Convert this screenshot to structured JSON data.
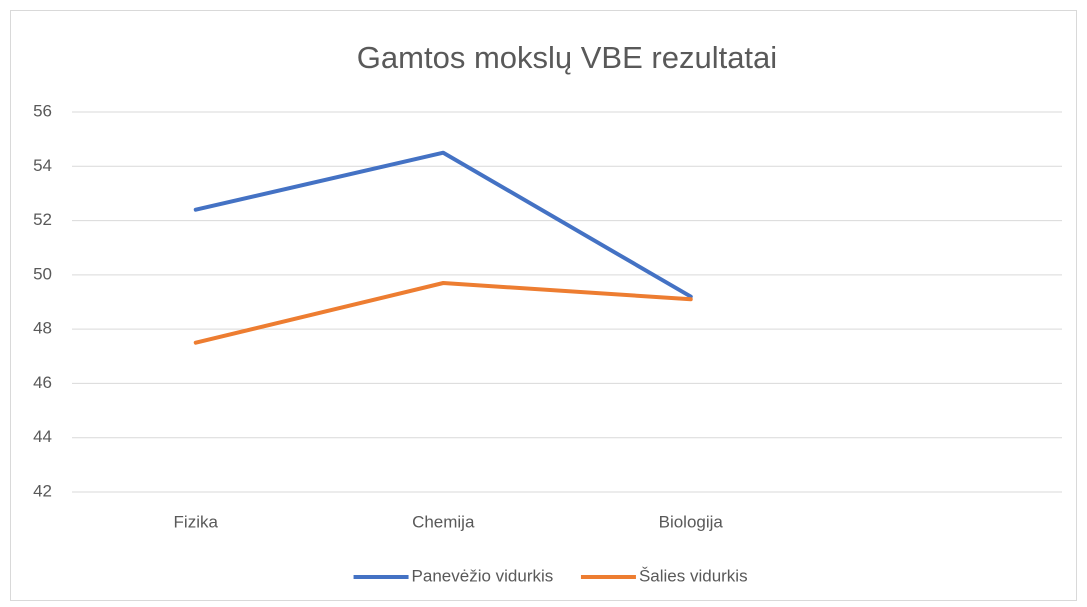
{
  "chart_data": {
    "type": "line",
    "title": "Gamtos mokslų VBE rezultatai",
    "categories": [
      "Fizika",
      "Chemija",
      "Biologija",
      null
    ],
    "series": [
      {
        "name": "Panevėžio vidurkis",
        "color": "#4472c4",
        "values": [
          52.4,
          54.5,
          49.2,
          null
        ]
      },
      {
        "name": "Šalies vidurkis",
        "color": "#ed7d31",
        "values": [
          47.5,
          49.7,
          49.1,
          null
        ]
      }
    ],
    "ylim": [
      42,
      56
    ],
    "yticks": [
      42,
      44,
      46,
      48,
      50,
      52,
      54,
      56
    ],
    "grid": true,
    "legend": "bottom"
  }
}
